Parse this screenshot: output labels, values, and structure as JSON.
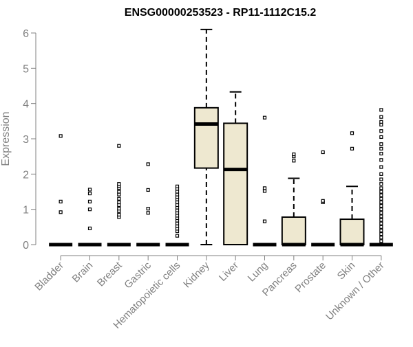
{
  "chart_data": {
    "type": "boxplot",
    "title": "ENSG00000253523 - RP11-1112C15.2",
    "ylabel": "Expression",
    "xlabel": "",
    "ylim": [
      0,
      6
    ],
    "yticks": [
      0,
      1,
      2,
      3,
      4,
      5,
      6
    ],
    "grid": false,
    "legend": "none",
    "categories": [
      "Bladder",
      "Brain",
      "Breast",
      "Gastric",
      "Hematopoietic cells",
      "Kidney",
      "Liver",
      "Lung",
      "Pancreas",
      "Prostate",
      "Skin",
      "Unknown / Other"
    ],
    "boxes": [
      {
        "category": "Bladder",
        "min": 0,
        "q1": 0,
        "median": 0,
        "q3": 0,
        "max": 0,
        "outliers": [
          0.92,
          1.22,
          3.08
        ]
      },
      {
        "category": "Brain",
        "min": 0,
        "q1": 0,
        "median": 0,
        "q3": 0,
        "max": 0,
        "outliers": [
          0.46,
          1.0,
          1.22,
          1.45,
          1.56
        ]
      },
      {
        "category": "Breast",
        "min": 0,
        "q1": 0,
        "median": 0,
        "q3": 0,
        "max": 0,
        "outliers": [
          0.78,
          0.85,
          0.95,
          1.02,
          1.12,
          1.2,
          1.3,
          1.42,
          1.5,
          1.6,
          1.66,
          1.72,
          2.8
        ]
      },
      {
        "category": "Gastric",
        "min": 0,
        "q1": 0,
        "median": 0,
        "q3": 0,
        "max": 0,
        "outliers": [
          0.9,
          1.02,
          1.55,
          2.28
        ]
      },
      {
        "category": "Hematopoietic cells",
        "min": 0,
        "q1": 0,
        "median": 0,
        "q3": 0,
        "max": 0,
        "outliers": [
          0.25,
          0.38,
          0.45,
          0.52,
          0.6,
          0.68,
          0.75,
          0.82,
          0.9,
          0.97,
          1.05,
          1.12,
          1.2,
          1.28,
          1.35,
          1.42,
          1.5,
          1.58,
          1.65
        ]
      },
      {
        "category": "Kidney",
        "min": 0,
        "q1": 2.17,
        "median": 3.42,
        "q3": 3.88,
        "max": 6.1,
        "outliers": []
      },
      {
        "category": "Liver",
        "min": 0,
        "q1": 0,
        "median": 2.13,
        "q3": 3.44,
        "max": 4.33,
        "outliers": []
      },
      {
        "category": "Lung",
        "min": 0,
        "q1": 0,
        "median": 0,
        "q3": 0,
        "max": 0,
        "outliers": [
          0.66,
          1.52,
          1.6,
          3.6
        ]
      },
      {
        "category": "Pancreas",
        "min": 0,
        "q1": 0,
        "median": 0,
        "q3": 0.78,
        "max": 1.88,
        "outliers": [
          2.38,
          2.5,
          2.56
        ]
      },
      {
        "category": "Prostate",
        "min": 0,
        "q1": 0,
        "median": 0,
        "q3": 0,
        "max": 0,
        "outliers": [
          1.2,
          1.24,
          2.62
        ]
      },
      {
        "category": "Skin",
        "min": 0,
        "q1": 0,
        "median": 0,
        "q3": 0.72,
        "max": 1.65,
        "outliers": [
          2.72,
          3.16
        ]
      },
      {
        "category": "Unknown / Other",
        "min": 0,
        "q1": 0,
        "median": 0,
        "q3": 0,
        "max": 0,
        "outliers": [
          0.1,
          0.2,
          0.3,
          0.4,
          0.5,
          0.6,
          0.7,
          0.8,
          0.9,
          1.0,
          1.1,
          1.2,
          1.3,
          1.4,
          1.5,
          1.6,
          1.72,
          1.85,
          2.0,
          2.2,
          2.4,
          2.58,
          2.72,
          2.85,
          3.05,
          3.22,
          3.4,
          3.48,
          3.62,
          3.82
        ]
      }
    ],
    "colors": {
      "box_fill": "#EEE8D0",
      "box_stroke": "#000000",
      "axis": "#808080",
      "text_muted": "#808080",
      "title": "#000000"
    }
  }
}
